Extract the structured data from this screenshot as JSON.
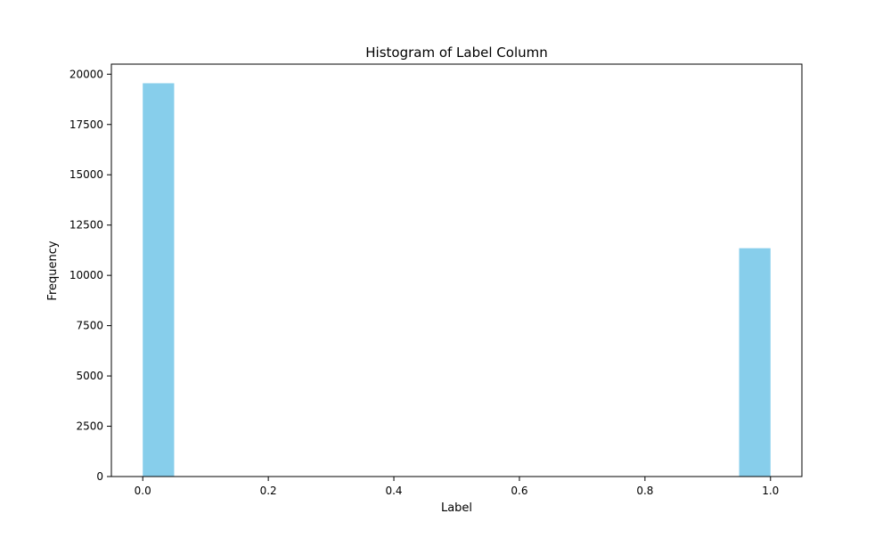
{
  "chart_data": {
    "type": "bar",
    "title": "Histogram of Label Column",
    "xlabel": "Label",
    "ylabel": "Frequency",
    "bar_color": "#87ceeb",
    "xlim": [
      -0.05,
      1.05
    ],
    "ylim": [
      0,
      20500
    ],
    "xticks": [
      0.0,
      0.2,
      0.4,
      0.6,
      0.8,
      1.0
    ],
    "xtick_labels": [
      "0.0",
      "0.2",
      "0.4",
      "0.6",
      "0.8",
      "1.0"
    ],
    "yticks": [
      0,
      2500,
      5000,
      7500,
      10000,
      12500,
      15000,
      17500,
      20000
    ],
    "ytick_labels": [
      "0",
      "2500",
      "5000",
      "7500",
      "10000",
      "12500",
      "15000",
      "17500",
      "20000"
    ],
    "bins": [
      {
        "x_start": 0.0,
        "x_end": 0.05,
        "value": 19550
      },
      {
        "x_start": 0.95,
        "x_end": 1.0,
        "value": 11350
      }
    ],
    "grid": false
  }
}
